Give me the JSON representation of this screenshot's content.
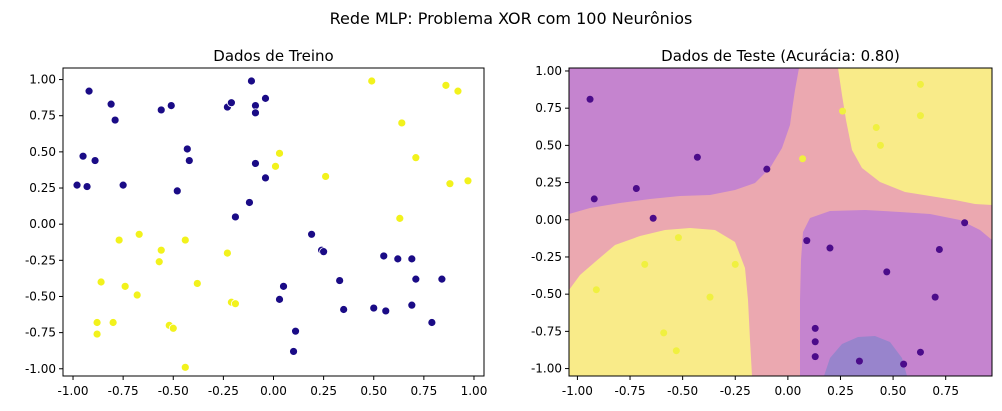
{
  "suptitle": "Rede MLP: Problema XOR com 100 Neurônios",
  "colors": {
    "class0": "#1a0b86",
    "class1": "#f2f21c",
    "test_class0": "#4b0c8a",
    "test_class1": "#f0f040",
    "region_low": "#c584cf",
    "region_mid": "#eba8b0",
    "region_high": "#f9eb89",
    "region_deep": "#9884cc"
  },
  "chart_data": [
    {
      "type": "scatter",
      "title": "Dados de Treino",
      "xlim": [
        -1.05,
        1.05
      ],
      "ylim": [
        -1.05,
        1.08
      ],
      "xticks": [
        "-1.00",
        "-0.75",
        "-0.50",
        "-0.25",
        "0.00",
        "0.25",
        "0.50",
        "0.75",
        "1.00"
      ],
      "yticks": [
        "1.00",
        "0.75",
        "0.50",
        "0.25",
        "0.00",
        "-0.25",
        "-0.50",
        "-0.75",
        "-1.00"
      ],
      "grid": false,
      "series": [
        {
          "class": 0,
          "points": [
            [
              -0.98,
              0.27
            ],
            [
              -0.93,
              0.26
            ],
            [
              -0.95,
              0.47
            ],
            [
              -0.92,
              0.92
            ],
            [
              -0.89,
              0.44
            ],
            [
              -0.81,
              0.83
            ],
            [
              -0.79,
              0.72
            ],
            [
              -0.75,
              0.27
            ],
            [
              -0.56,
              0.79
            ],
            [
              -0.51,
              0.82
            ],
            [
              -0.48,
              0.23
            ],
            [
              -0.43,
              0.52
            ],
            [
              -0.42,
              0.44
            ],
            [
              -0.23,
              0.81
            ],
            [
              -0.21,
              0.84
            ],
            [
              -0.19,
              0.05
            ],
            [
              -0.12,
              0.15
            ],
            [
              -0.11,
              0.99
            ],
            [
              -0.09,
              0.82
            ],
            [
              -0.09,
              0.77
            ],
            [
              -0.09,
              0.42
            ],
            [
              -0.04,
              0.87
            ],
            [
              -0.04,
              0.32
            ],
            [
              0.19,
              -0.07
            ],
            [
              0.24,
              -0.18
            ],
            [
              0.25,
              -0.19
            ],
            [
              0.33,
              -0.39
            ],
            [
              0.35,
              -0.59
            ],
            [
              0.05,
              -0.43
            ],
            [
              0.03,
              -0.52
            ],
            [
              0.11,
              -0.74
            ],
            [
              0.1,
              -0.88
            ],
            [
              0.5,
              -0.58
            ],
            [
              0.55,
              -0.22
            ],
            [
              0.56,
              -0.6
            ],
            [
              0.62,
              -0.24
            ],
            [
              0.69,
              -0.24
            ],
            [
              0.71,
              -0.38
            ],
            [
              0.69,
              -0.56
            ],
            [
              0.79,
              -0.68
            ],
            [
              0.84,
              -0.38
            ]
          ]
        },
        {
          "class": 1,
          "points": [
            [
              0.49,
              0.99
            ],
            [
              0.64,
              0.7
            ],
            [
              0.71,
              0.46
            ],
            [
              0.86,
              0.96
            ],
            [
              0.92,
              0.92
            ],
            [
              0.88,
              0.28
            ],
            [
              0.97,
              0.3
            ],
            [
              0.63,
              0.04
            ],
            [
              0.03,
              0.49
            ],
            [
              0.01,
              0.4
            ],
            [
              0.26,
              0.33
            ],
            [
              -0.86,
              -0.4
            ],
            [
              -0.88,
              -0.68
            ],
            [
              -0.88,
              -0.76
            ],
            [
              -0.8,
              -0.68
            ],
            [
              -0.77,
              -0.11
            ],
            [
              -0.74,
              -0.43
            ],
            [
              -0.67,
              -0.07
            ],
            [
              -0.68,
              -0.49
            ],
            [
              -0.56,
              -0.18
            ],
            [
              -0.57,
              -0.26
            ],
            [
              -0.52,
              -0.7
            ],
            [
              -0.5,
              -0.72
            ],
            [
              -0.44,
              -0.11
            ],
            [
              -0.44,
              -0.99
            ],
            [
              -0.38,
              -0.41
            ],
            [
              -0.23,
              -0.2
            ],
            [
              -0.21,
              -0.54
            ],
            [
              -0.19,
              -0.55
            ]
          ]
        }
      ]
    },
    {
      "type": "scatter",
      "title": "Dados de Teste (Acurácia: 0.80)",
      "xlim": [
        -1.04,
        0.97
      ],
      "ylim": [
        -1.05,
        1.02
      ],
      "xticks": [
        "-1.00",
        "-0.75",
        "-0.50",
        "-0.25",
        "0.00",
        "0.25",
        "0.50",
        "0.75"
      ],
      "yticks": [
        "1.00",
        "0.75",
        "0.50",
        "0.25",
        "0.00",
        "-0.25",
        "-0.50",
        "-0.75",
        "-1.00"
      ],
      "grid": false,
      "decision_regions": [
        "low",
        "mid",
        "high"
      ],
      "series": [
        {
          "class": 0,
          "points": [
            [
              -0.94,
              0.81
            ],
            [
              -0.92,
              0.14
            ],
            [
              -0.72,
              0.21
            ],
            [
              -0.64,
              0.01
            ],
            [
              -0.43,
              0.42
            ],
            [
              -0.1,
              0.34
            ],
            [
              0.84,
              -0.02
            ],
            [
              0.09,
              -0.14
            ],
            [
              0.2,
              -0.19
            ],
            [
              0.47,
              -0.35
            ],
            [
              0.72,
              -0.2
            ],
            [
              0.7,
              -0.52
            ],
            [
              0.13,
              -0.73
            ],
            [
              0.13,
              -0.82
            ],
            [
              0.13,
              -0.92
            ],
            [
              0.34,
              -0.95
            ],
            [
              0.55,
              -0.97
            ],
            [
              0.63,
              -0.89
            ]
          ]
        },
        {
          "class": 1,
          "points": [
            [
              0.07,
              0.41
            ],
            [
              0.26,
              0.73
            ],
            [
              0.42,
              0.62
            ],
            [
              0.44,
              0.5
            ],
            [
              0.63,
              0.91
            ],
            [
              0.63,
              0.7
            ],
            [
              -0.91,
              -0.47
            ],
            [
              -0.68,
              -0.3
            ],
            [
              -0.52,
              -0.12
            ],
            [
              -0.25,
              -0.3
            ],
            [
              -0.37,
              -0.52
            ],
            [
              -0.59,
              -0.76
            ],
            [
              -0.53,
              -0.88
            ]
          ]
        }
      ]
    }
  ]
}
